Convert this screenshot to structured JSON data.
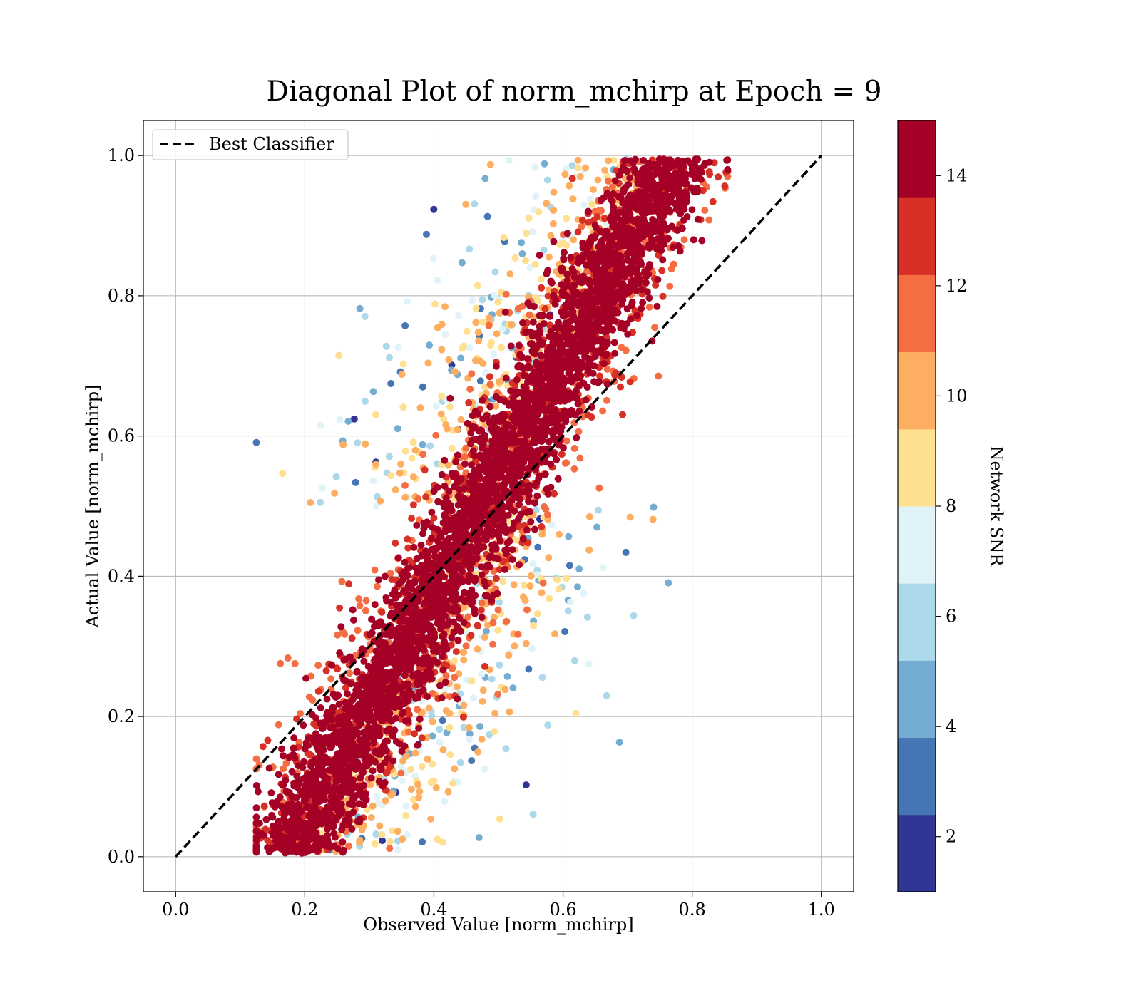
{
  "chart_data": {
    "type": "scatter",
    "title": "Diagonal Plot of norm_mchirp at Epoch = 9",
    "xlabel": "Observed Value [norm_mchirp]",
    "ylabel": "Actual Value [norm_mchirp]",
    "xlim": [
      -0.05,
      1.05
    ],
    "ylim": [
      -0.05,
      1.05
    ],
    "xticks": [
      0.0,
      0.2,
      0.4,
      0.6,
      0.8,
      1.0
    ],
    "yticks": [
      0.0,
      0.2,
      0.4,
      0.6,
      0.8,
      1.0
    ],
    "xtick_labels": [
      "0.0",
      "0.2",
      "0.4",
      "0.6",
      "0.8",
      "1.0"
    ],
    "ytick_labels": [
      "0.0",
      "0.2",
      "0.4",
      "0.6",
      "0.8",
      "1.0"
    ],
    "grid": true,
    "legend": {
      "placement": "upper-left",
      "entries": [
        "Best Classifier"
      ]
    },
    "reference_line": {
      "name": "Best Classifier",
      "x": [
        0.0,
        1.0
      ],
      "y": [
        0.0,
        1.0
      ],
      "color": "#000000",
      "style": "dashed"
    },
    "colorbar": {
      "label": "Network SNR",
      "range": [
        1,
        15
      ],
      "ticks": [
        2,
        4,
        6,
        8,
        10,
        12,
        14
      ],
      "tick_labels": [
        "2",
        "4",
        "6",
        "8",
        "10",
        "12",
        "14"
      ],
      "colors": [
        "#313695",
        "#4575b4",
        "#74add1",
        "#abd9e9",
        "#e0f3f8",
        "#fee090",
        "#fdae61",
        "#f46d43",
        "#d73027",
        "#a50026"
      ]
    },
    "scatter_summary": {
      "point_count_estimate": 6000,
      "x_range": [
        0.12,
        0.86
      ],
      "y_range": [
        0.0,
        1.0
      ],
      "relation": "y roughly equals x with spread about 0.2; low-SNR points scattered farther from the diagonal"
    }
  }
}
